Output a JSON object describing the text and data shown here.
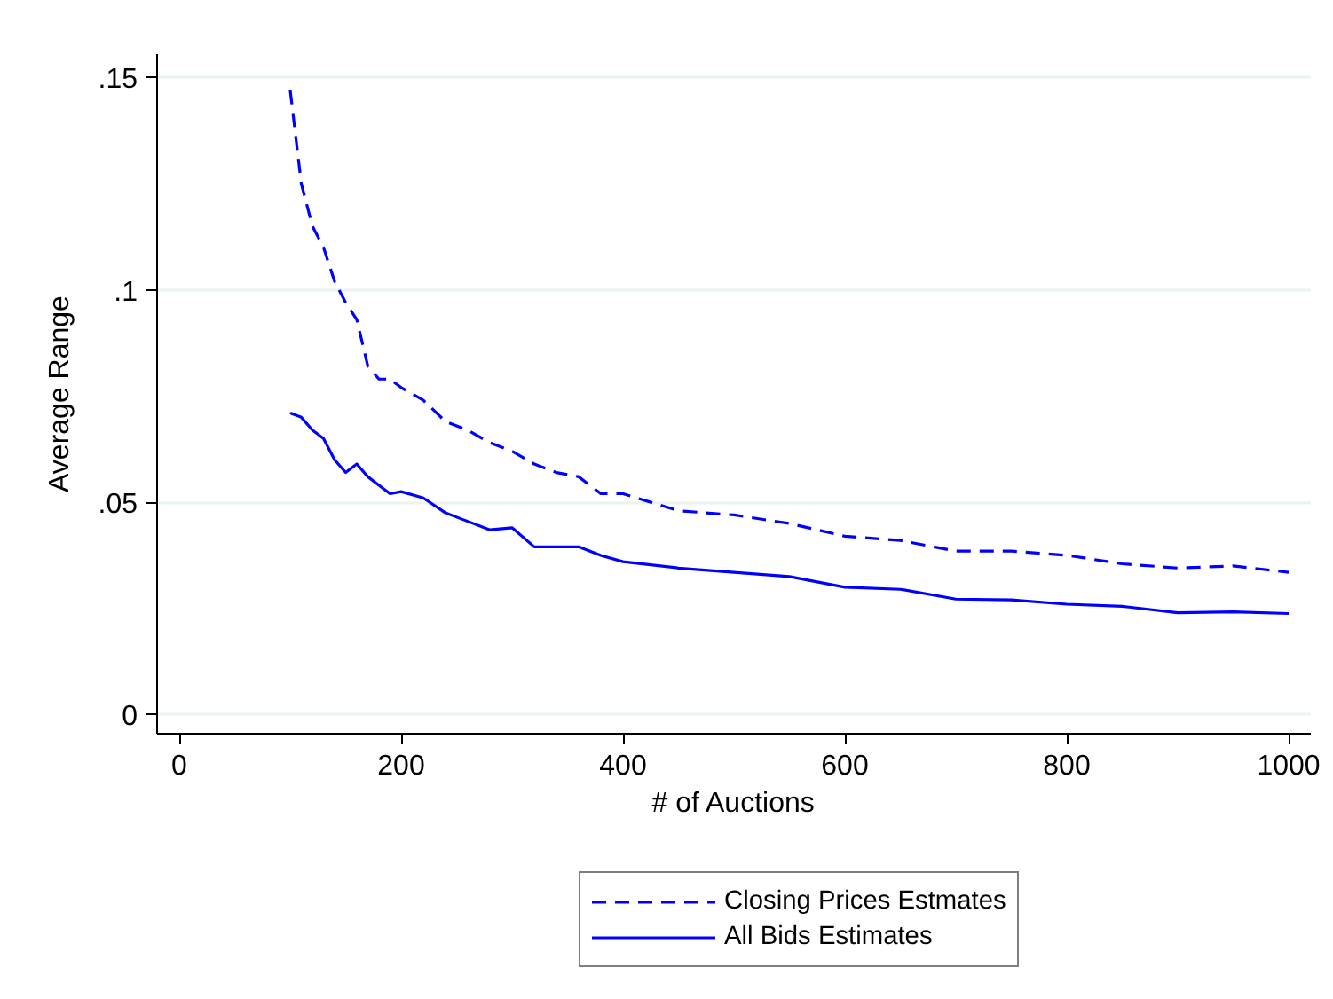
{
  "chart_data": {
    "type": "line",
    "xlabel": "# of Auctions",
    "ylabel": "Average Range",
    "xlim": [
      -20,
      1020
    ],
    "ylim": [
      -0.0045,
      0.1555
    ],
    "xticks": [
      0,
      200,
      400,
      600,
      800,
      1000
    ],
    "yticks": [
      {
        "value": 0,
        "label": "0"
      },
      {
        "value": 0.05,
        "label": ".05"
      },
      {
        "value": 0.1,
        "label": ".1"
      },
      {
        "value": 0.15,
        "label": ".15"
      }
    ],
    "grid": "y",
    "legend": "bottom",
    "x": [
      100,
      110,
      120,
      130,
      140,
      150,
      160,
      170,
      180,
      190,
      200,
      220,
      240,
      260,
      280,
      300,
      320,
      340,
      360,
      380,
      400,
      450,
      500,
      550,
      600,
      650,
      700,
      750,
      800,
      850,
      900,
      950,
      1000
    ],
    "series": [
      {
        "name": "Closing Prices Estmates",
        "color": "#0000ff",
        "line_style": "dashed",
        "values": [
          0.147,
          0.125,
          0.115,
          0.11,
          0.102,
          0.097,
          0.093,
          0.082,
          0.079,
          0.079,
          0.077,
          0.074,
          0.069,
          0.067,
          0.064,
          0.062,
          0.059,
          0.057,
          0.056,
          0.052,
          0.052,
          0.048,
          0.047,
          0.045,
          0.042,
          0.041,
          0.0385,
          0.0385,
          0.0375,
          0.0355,
          0.0345,
          0.035,
          0.0335
        ]
      },
      {
        "name": "All Bids Estimates",
        "color": "#0000ff",
        "line_style": "solid",
        "values": [
          0.071,
          0.07,
          0.067,
          0.065,
          0.06,
          0.057,
          0.059,
          0.056,
          0.054,
          0.052,
          0.0525,
          0.051,
          0.0475,
          0.0455,
          0.0435,
          0.044,
          0.0395,
          0.0395,
          0.0395,
          0.0375,
          0.036,
          0.0345,
          0.0335,
          0.0325,
          0.03,
          0.0295,
          0.0272,
          0.027,
          0.026,
          0.0255,
          0.024,
          0.0242,
          0.0238
        ]
      }
    ]
  }
}
